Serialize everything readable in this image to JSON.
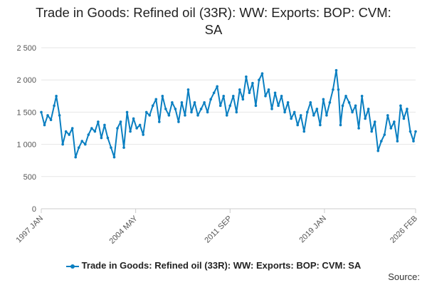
{
  "chart_data": {
    "type": "line",
    "title_lines": [
      "Trade in Goods: Refined oil (33R): WW: Exports: BOP: CVM:",
      "SA"
    ],
    "ylim": [
      0,
      2500
    ],
    "yticks": [
      0,
      500,
      1000,
      1500,
      2000,
      2500
    ],
    "ytick_labels": [
      "0",
      "500",
      "1 000",
      "1 500",
      "2 000",
      "2 500"
    ],
    "xlim": [
      "1997-01",
      "2026-02"
    ],
    "xticks": [
      "1997-01",
      "2004-05",
      "2011-09",
      "2019-01",
      "2026-02"
    ],
    "xtick_labels": [
      "1997 JAN",
      "2004 MAY",
      "2011 SEP",
      "2019 JAN",
      "2026 FEB"
    ],
    "grid": true,
    "legend_position": "bottom",
    "series": [
      {
        "name": "Trade in Goods: Refined oil (33R): WW: Exports: BOP: CVM: SA",
        "color": "#0a7fc1",
        "points": [
          [
            "1997-01",
            1500
          ],
          [
            "1997-04",
            1300
          ],
          [
            "1997-07",
            1450
          ],
          [
            "1997-10",
            1380
          ],
          [
            "1998-01",
            1600
          ],
          [
            "1998-03",
            1750
          ],
          [
            "1998-06",
            1450
          ],
          [
            "1998-09",
            1000
          ],
          [
            "1998-12",
            1200
          ],
          [
            "1999-03",
            1150
          ],
          [
            "1999-06",
            1250
          ],
          [
            "1999-09",
            800
          ],
          [
            "1999-12",
            950
          ],
          [
            "2000-03",
            1050
          ],
          [
            "2000-06",
            1000
          ],
          [
            "2000-09",
            1150
          ],
          [
            "2000-12",
            1250
          ],
          [
            "2001-03",
            1200
          ],
          [
            "2001-06",
            1350
          ],
          [
            "2001-09",
            1100
          ],
          [
            "2001-12",
            1300
          ],
          [
            "2002-03",
            1100
          ],
          [
            "2002-06",
            950
          ],
          [
            "2002-09",
            800
          ],
          [
            "2002-12",
            1250
          ],
          [
            "2003-03",
            1350
          ],
          [
            "2003-06",
            950
          ],
          [
            "2003-09",
            1500
          ],
          [
            "2003-12",
            1200
          ],
          [
            "2004-03",
            1400
          ],
          [
            "2004-06",
            1250
          ],
          [
            "2004-09",
            1300
          ],
          [
            "2004-12",
            1150
          ],
          [
            "2005-03",
            1500
          ],
          [
            "2005-06",
            1450
          ],
          [
            "2005-09",
            1600
          ],
          [
            "2005-12",
            1700
          ],
          [
            "2006-03",
            1350
          ],
          [
            "2006-06",
            1750
          ],
          [
            "2006-09",
            1550
          ],
          [
            "2006-12",
            1450
          ],
          [
            "2007-03",
            1650
          ],
          [
            "2007-06",
            1550
          ],
          [
            "2007-09",
            1350
          ],
          [
            "2007-12",
            1650
          ],
          [
            "2008-03",
            1450
          ],
          [
            "2008-06",
            1850
          ],
          [
            "2008-09",
            1500
          ],
          [
            "2008-12",
            1650
          ],
          [
            "2009-03",
            1450
          ],
          [
            "2009-06",
            1550
          ],
          [
            "2009-09",
            1650
          ],
          [
            "2009-12",
            1500
          ],
          [
            "2010-03",
            1700
          ],
          [
            "2010-06",
            1800
          ],
          [
            "2010-09",
            1900
          ],
          [
            "2010-12",
            1600
          ],
          [
            "2011-03",
            1750
          ],
          [
            "2011-06",
            1450
          ],
          [
            "2011-09",
            1600
          ],
          [
            "2011-12",
            1750
          ],
          [
            "2012-03",
            1500
          ],
          [
            "2012-06",
            1850
          ],
          [
            "2012-09",
            1700
          ],
          [
            "2012-12",
            2050
          ],
          [
            "2013-03",
            1800
          ],
          [
            "2013-06",
            1950
          ],
          [
            "2013-09",
            1600
          ],
          [
            "2013-12",
            2000
          ],
          [
            "2014-03",
            2100
          ],
          [
            "2014-06",
            1750
          ],
          [
            "2014-09",
            1850
          ],
          [
            "2014-12",
            1550
          ],
          [
            "2015-03",
            1800
          ],
          [
            "2015-06",
            1600
          ],
          [
            "2015-09",
            1750
          ],
          [
            "2015-12",
            1500
          ],
          [
            "2016-03",
            1650
          ],
          [
            "2016-06",
            1400
          ],
          [
            "2016-09",
            1500
          ],
          [
            "2016-12",
            1300
          ],
          [
            "2017-03",
            1450
          ],
          [
            "2017-06",
            1200
          ],
          [
            "2017-09",
            1500
          ],
          [
            "2017-12",
            1650
          ],
          [
            "2018-03",
            1450
          ],
          [
            "2018-06",
            1550
          ],
          [
            "2018-09",
            1300
          ],
          [
            "2018-12",
            1700
          ],
          [
            "2019-03",
            1450
          ],
          [
            "2019-06",
            1650
          ],
          [
            "2019-09",
            1850
          ],
          [
            "2019-12",
            2150
          ],
          [
            "2020-02",
            1850
          ],
          [
            "2020-04",
            1300
          ],
          [
            "2020-06",
            1600
          ],
          [
            "2020-09",
            1750
          ],
          [
            "2020-12",
            1650
          ],
          [
            "2021-03",
            1500
          ],
          [
            "2021-06",
            1600
          ],
          [
            "2021-09",
            1250
          ],
          [
            "2021-12",
            1750
          ],
          [
            "2022-03",
            1400
          ],
          [
            "2022-06",
            1550
          ],
          [
            "2022-09",
            1200
          ],
          [
            "2022-12",
            1350
          ],
          [
            "2023-03",
            900
          ],
          [
            "2023-06",
            1050
          ],
          [
            "2023-09",
            1150
          ],
          [
            "2023-12",
            1450
          ],
          [
            "2024-03",
            1250
          ],
          [
            "2024-06",
            1350
          ],
          [
            "2024-09",
            1050
          ],
          [
            "2024-12",
            1600
          ],
          [
            "2025-03",
            1400
          ],
          [
            "2025-06",
            1550
          ],
          [
            "2025-09",
            1200
          ],
          [
            "2025-12",
            1050
          ],
          [
            "2026-02",
            1200
          ]
        ]
      }
    ]
  },
  "legend_label": "Trade in Goods: Refined oil (33R): WW: Exports: BOP: CVM: SA",
  "source_label": "Source:"
}
